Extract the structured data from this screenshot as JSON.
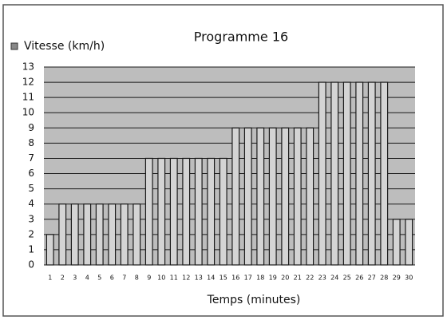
{
  "chart_data": {
    "type": "bar",
    "title": "Programme 16",
    "x_label": "Temps (minutes)",
    "categories": [
      1,
      2,
      3,
      4,
      5,
      6,
      7,
      8,
      9,
      10,
      11,
      12,
      13,
      14,
      15,
      16,
      17,
      18,
      19,
      20,
      21,
      22,
      23,
      24,
      25,
      26,
      27,
      28,
      29,
      30
    ],
    "series": [
      {
        "name": "Vitesse (km/h)",
        "color": "#d4d4d4",
        "values": [
          2,
          4,
          4,
          4,
          4,
          4,
          4,
          4,
          7,
          7,
          7,
          7,
          7,
          7,
          7,
          9,
          9,
          9,
          9,
          9,
          9,
          9,
          12,
          12,
          12,
          12,
          12,
          12,
          3,
          3
        ]
      }
    ],
    "ylim": [
      0,
      13
    ],
    "yticks": [
      0,
      1,
      2,
      3,
      4,
      5,
      6,
      7,
      8,
      9,
      10,
      11,
      12,
      13
    ],
    "grid": true,
    "legend": "top-left"
  }
}
